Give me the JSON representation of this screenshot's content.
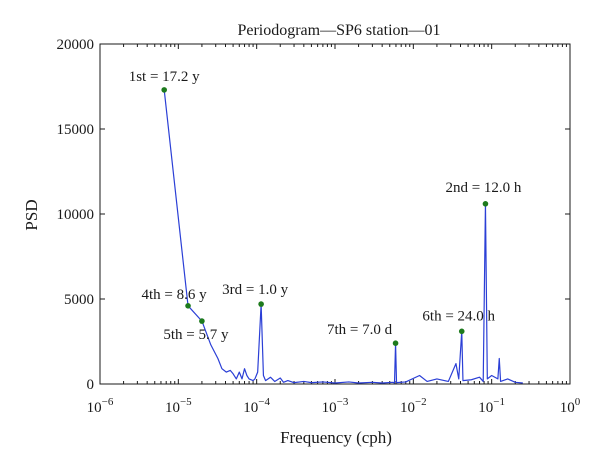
{
  "chart_data": {
    "type": "line",
    "title": "Periodogram—SP6 station—01",
    "xlabel": "Frequency (cph)",
    "ylabel": "PSD",
    "x_scale": "log",
    "xlim": [
      1e-06,
      1
    ],
    "ylim": [
      0,
      20000
    ],
    "grid": false,
    "x_ticks": [
      {
        "value": 1e-06,
        "base": "10",
        "exp": "−6"
      },
      {
        "value": 1e-05,
        "base": "10",
        "exp": "−5"
      },
      {
        "value": 0.0001,
        "base": "10",
        "exp": "−4"
      },
      {
        "value": 0.001,
        "base": "10",
        "exp": "−3"
      },
      {
        "value": 0.01,
        "base": "10",
        "exp": "−2"
      },
      {
        "value": 0.1,
        "base": "10",
        "exp": "−1"
      },
      {
        "value": 1,
        "base": "10",
        "exp": "0"
      }
    ],
    "y_ticks": [
      {
        "value": 0,
        "label": "0"
      },
      {
        "value": 5000,
        "label": "5000"
      },
      {
        "value": 10000,
        "label": "10000"
      },
      {
        "value": 15000,
        "label": "15000"
      },
      {
        "value": 20000,
        "label": "20000"
      }
    ],
    "line_color": "#2b3fd6",
    "marker_color": "#1d7a1d",
    "series": [
      {
        "points": [
          [
            6.6e-06,
            17300
          ],
          [
            1.33e-05,
            4600
          ],
          [
            2e-05,
            3700
          ],
          [
            2.6e-05,
            2300
          ],
          [
            3.2e-05,
            1500
          ],
          [
            3.6e-05,
            900
          ],
          [
            4.1e-05,
            700
          ],
          [
            4.6e-05,
            800
          ],
          [
            5e-05,
            600
          ],
          [
            5.5e-05,
            300
          ],
          [
            6e-05,
            700
          ],
          [
            6.5e-05,
            300
          ],
          [
            7e-05,
            900
          ],
          [
            7.5e-05,
            500
          ],
          [
            8e-05,
            300
          ],
          [
            9e-05,
            200
          ],
          [
            9.5e-05,
            300
          ],
          [
            0.000103,
            700
          ],
          [
            0.000114,
            4700
          ],
          [
            0.000122,
            500
          ],
          [
            0.00013,
            200
          ],
          [
            0.00015,
            400
          ],
          [
            0.00017,
            150
          ],
          [
            0.0002,
            350
          ],
          [
            0.00022,
            100
          ],
          [
            0.00025,
            200
          ],
          [
            0.0003,
            80
          ],
          [
            0.0004,
            150
          ],
          [
            0.0005,
            80
          ],
          [
            0.0007,
            120
          ],
          [
            0.001,
            60
          ],
          [
            0.0015,
            120
          ],
          [
            0.002,
            60
          ],
          [
            0.003,
            100
          ],
          [
            0.004,
            60
          ],
          [
            0.0055,
            100
          ],
          [
            0.00575,
            60
          ],
          [
            0.00593,
            2400
          ],
          [
            0.0061,
            80
          ],
          [
            0.008,
            120
          ],
          [
            0.012,
            500
          ],
          [
            0.015,
            150
          ],
          [
            0.02,
            300
          ],
          [
            0.028,
            150
          ],
          [
            0.035,
            1200
          ],
          [
            0.038,
            300
          ],
          [
            0.0415,
            3100
          ],
          [
            0.043,
            200
          ],
          [
            0.055,
            250
          ],
          [
            0.07,
            400
          ],
          [
            0.078,
            150
          ],
          [
            0.0833,
            10600
          ],
          [
            0.088,
            300
          ],
          [
            0.1,
            500
          ],
          [
            0.12,
            300
          ],
          [
            0.125,
            1500
          ],
          [
            0.13,
            150
          ],
          [
            0.16,
            300
          ],
          [
            0.2,
            100
          ],
          [
            0.25,
            60
          ]
        ]
      }
    ],
    "annotations": [
      {
        "text": "1st = 17.2 y",
        "x": 6.6e-06,
        "y": 17300,
        "anchor": "middle",
        "dx": 0,
        "dy": -9
      },
      {
        "text": "2nd = 12.0 h",
        "x": 0.0833,
        "y": 10600,
        "anchor": "middle",
        "dx": -2,
        "dy": -12
      },
      {
        "text": "3rd = 1.0 y",
        "x": 0.000114,
        "y": 4700,
        "anchor": "middle",
        "dx": -6,
        "dy": -10
      },
      {
        "text": "4th = 8.6 y",
        "x": 1.33e-05,
        "y": 4600,
        "anchor": "middle",
        "dx": -14,
        "dy": -7
      },
      {
        "text": "5th = 5.7 y",
        "x": 2e-05,
        "y": 3700,
        "anchor": "middle",
        "dx": -6,
        "dy": 18
      },
      {
        "text": "6th = 24.0 h",
        "x": 0.0415,
        "y": 3100,
        "anchor": "middle",
        "dx": -3,
        "dy": -11
      },
      {
        "text": "7th = 7.0 d",
        "x": 0.00593,
        "y": 2400,
        "anchor": "middle",
        "dx": -36,
        "dy": -9
      }
    ]
  }
}
